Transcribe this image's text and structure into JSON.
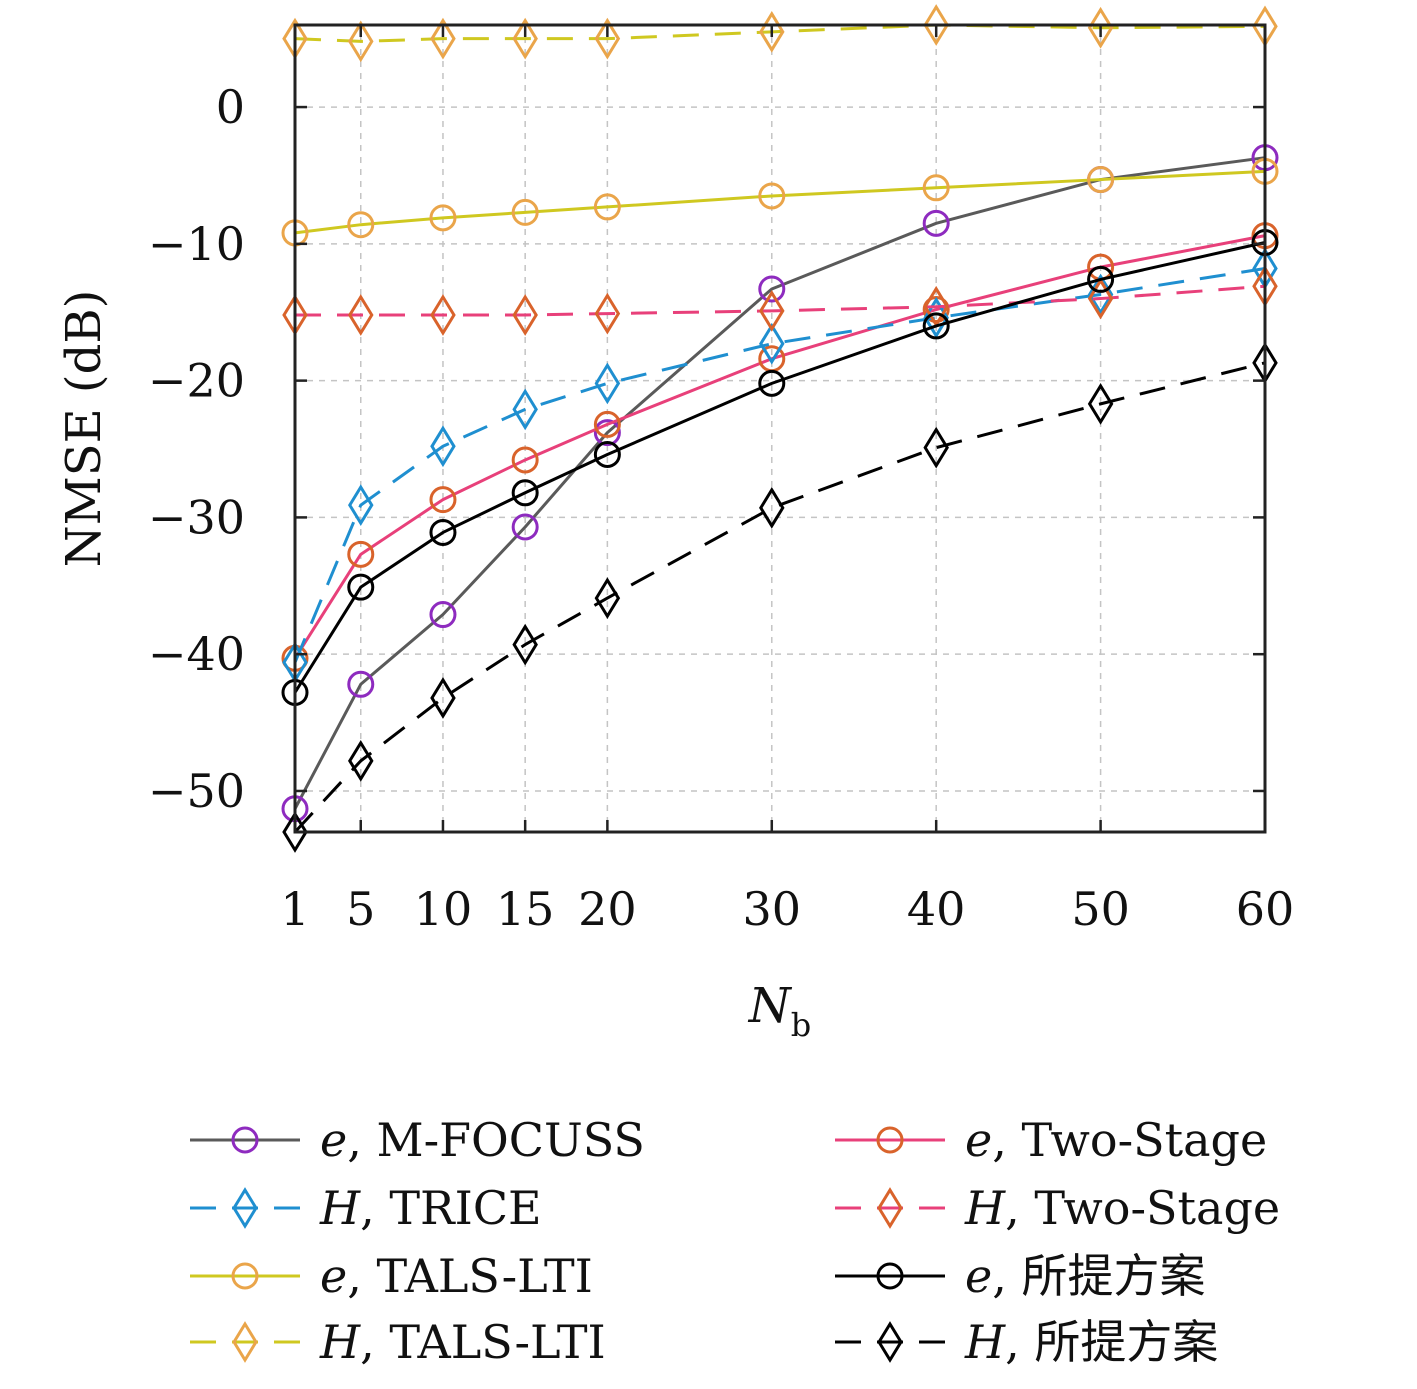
{
  "chart_data": {
    "type": "line",
    "xlabel": "N",
    "xlabel_sub": "b",
    "ylabel": "NMSE (dB)",
    "x": [
      1,
      5,
      10,
      15,
      20,
      30,
      40,
      50,
      60
    ],
    "xlim": [
      1,
      60
    ],
    "ylim": [
      -53,
      6
    ],
    "yticks": [
      -50,
      -40,
      -30,
      -20,
      -10,
      0
    ],
    "ytick_labels": [
      "−50",
      "−40",
      "−30",
      "−20",
      "−10",
      "0"
    ],
    "xticks": [
      1,
      5,
      10,
      15,
      20,
      30,
      40,
      50,
      60
    ],
    "xtick_labels": [
      "1",
      "5",
      "10",
      "15",
      "20",
      "30",
      "40",
      "50",
      "60"
    ],
    "grid": true,
    "legend_position": "bottom",
    "series": [
      {
        "name_var": "e",
        "name_rest": ", M-FOCUSS",
        "marker": "circle",
        "dash": "solid",
        "line_color": "#5a5a5a",
        "marker_color": "#8e2bbf",
        "values": [
          -51.3,
          -42.2,
          -37.1,
          -30.7,
          -23.8,
          -13.3,
          -8.5,
          -5.3,
          -3.7
        ]
      },
      {
        "name_var": "e",
        "name_rest": ", Two-Stage",
        "marker": "circle",
        "dash": "solid",
        "line_color": "#e8407a",
        "marker_color": "#d9632b",
        "values": [
          -40.3,
          -32.7,
          -28.7,
          -25.8,
          -23.2,
          -18.4,
          -14.8,
          -11.7,
          -9.4
        ]
      },
      {
        "name_var": "H",
        "name_rest": ", TRICE",
        "marker": "diamond",
        "dash": "dashed",
        "line_color": "#1f8fd0",
        "marker_color": "#1f8fd0",
        "values": [
          -40.6,
          -29.1,
          -24.8,
          -22.1,
          -20.2,
          -17.3,
          -15.4,
          -13.7,
          -11.8
        ]
      },
      {
        "name_var": "H",
        "name_rest": ", Two-Stage",
        "marker": "diamond",
        "dash": "dashed",
        "line_color": "#e8407a",
        "marker_color": "#d9632b",
        "values": [
          -15.2,
          -15.2,
          -15.2,
          -15.2,
          -15.1,
          -14.9,
          -14.6,
          -14.0,
          -13.1
        ]
      },
      {
        "name_var": "e",
        "name_rest": ", TALS-LTI",
        "marker": "circle",
        "dash": "solid",
        "line_color": "#cfc820",
        "marker_color": "#eaa54a",
        "values": [
          -9.2,
          -8.6,
          -8.1,
          -7.7,
          -7.3,
          -6.5,
          -5.9,
          -5.3,
          -4.7
        ]
      },
      {
        "name_var": "e",
        "name_rest": ", 所提方案",
        "marker": "circle",
        "dash": "solid",
        "line_color": "#000000",
        "marker_color": "#000000",
        "values": [
          -42.8,
          -35.1,
          -31.1,
          -28.2,
          -25.4,
          -20.2,
          -16.0,
          -12.6,
          -9.9
        ]
      },
      {
        "name_var": "H",
        "name_rest": ", TALS-LTI",
        "marker": "diamond",
        "dash": "dashed",
        "line_color": "#cfc820",
        "marker_color": "#eaa54a",
        "values": [
          5.0,
          4.8,
          5.0,
          5.0,
          5.0,
          5.5,
          6.0,
          5.8,
          5.9
        ]
      },
      {
        "name_var": "H",
        "name_rest": ", 所提方案",
        "marker": "diamond",
        "dash": "dashed",
        "line_color": "#000000",
        "marker_color": "#000000",
        "values": [
          -53.0,
          -47.8,
          -43.2,
          -39.3,
          -35.9,
          -29.3,
          -24.9,
          -21.7,
          -18.7
        ]
      }
    ]
  }
}
